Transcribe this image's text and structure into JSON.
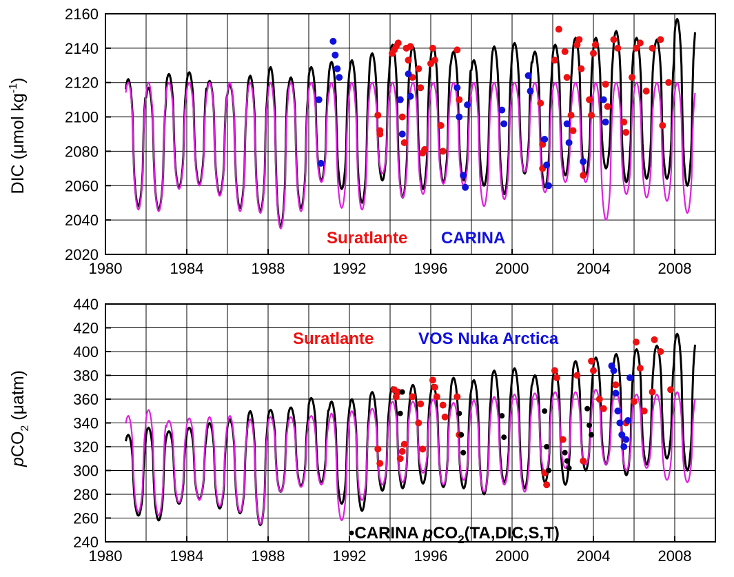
{
  "colors": {
    "model_black": "#000000",
    "model_magenta": "#dd22dd",
    "suratlante_red": "#ee1111",
    "carina_blue": "#1111dd",
    "carina_black_dots": "#000000"
  },
  "chart_data": [
    {
      "type": "line",
      "title": "",
      "ylabel_prefix": "DIC (",
      "ylabel_mu": "μ",
      "ylabel_mid": "mol kg",
      "ylabel_sup": "-1",
      "ylabel_suffix": ")",
      "xlabel": "",
      "xlim": [
        1980,
        2010
      ],
      "ylim": [
        2020,
        2160
      ],
      "x_ticks": [
        1980,
        1984,
        1988,
        1992,
        1996,
        2000,
        2004,
        2008
      ],
      "x_tick_labels": [
        "1980",
        "1984",
        "1988",
        "1992",
        "1996",
        "2000",
        "2004",
        "2008"
      ],
      "y_ticks": [
        2020,
        2040,
        2060,
        2080,
        2100,
        2120,
        2140,
        2160
      ],
      "y_tick_labels": [
        "2020",
        "2040",
        "2060",
        "2080",
        "2100",
        "2120",
        "2140",
        "2160"
      ],
      "grid": true,
      "legend": [
        {
          "label": "Suratlante",
          "color": "#ee1111"
        },
        {
          "label": "CARINA",
          "color": "#1111dd"
        }
      ],
      "series": [
        {
          "kind": "seasonal_line",
          "color": "#000000",
          "summer_min": [
            2048,
            2046,
            2059,
            2061,
            2055,
            2047,
            2045,
            2036,
            2047,
            2063,
            2058,
            2050,
            2063,
            2053,
            2058,
            2062,
            2063,
            2060,
            2055,
            2067,
            2059,
            2066,
            2066,
            2070,
            2062,
            2064,
            2064,
            2060
          ],
          "winter_max": [
            2122,
            2117,
            2125,
            2126,
            2121,
            2119,
            2124,
            2129,
            2123,
            2129,
            2132,
            2133,
            2137,
            2142,
            2141,
            2141,
            2138,
            2133,
            2141,
            2143,
            2138,
            2142,
            2146,
            2146,
            2150,
            2146,
            2145,
            2157
          ]
        },
        {
          "kind": "seasonal_line",
          "color": "#dd22dd",
          "summer_min": [
            2046,
            2045,
            2058,
            2060,
            2054,
            2045,
            2044,
            2035,
            2045,
            2062,
            2047,
            2046,
            2067,
            2053,
            2055,
            2061,
            2060,
            2048,
            2052,
            2068,
            2056,
            2062,
            2062,
            2040,
            2055,
            2053,
            2051,
            2044
          ],
          "winter_max": [
            2120,
            2120,
            2120,
            2120,
            2120,
            2120,
            2120,
            2120,
            2120,
            2120,
            2120,
            2120,
            2120,
            2120,
            2120,
            2120,
            2120,
            2120,
            2120,
            2120,
            2120,
            2120,
            2120,
            2120,
            2120,
            2120,
            2120,
            2120
          ]
        }
      ],
      "points": [
        {
          "name": "Suratlante",
          "color": "#ee1111",
          "x": [
            1993.4,
            1993.5,
            1993.5,
            1994.1,
            1994.2,
            1994.3,
            1994.4,
            1994.5,
            1994.6,
            1994.6,
            1994.7,
            1994.8,
            1994.9,
            1995.0,
            1995.1,
            1995.4,
            1995.5,
            1995.6,
            1995.7,
            1996.0,
            1996.1,
            1996.2,
            1996.5,
            1996.6,
            1997.3,
            1997.4,
            2001.4,
            2001.5,
            2001.5,
            2002.1,
            2002.3,
            2002.6,
            2002.7,
            2002.9,
            2003.0,
            2003.2,
            2003.3,
            2003.4,
            2003.5,
            2003.8,
            2003.9,
            2004.0,
            2004.1,
            2004.6,
            2004.7,
            2005.0,
            2005.2,
            2005.5,
            2005.6,
            2005.9,
            2006.1,
            2006.3,
            2006.6,
            2006.9,
            2007.3,
            2007.4,
            2007.7
          ],
          "y": [
            2101,
            2092,
            2090,
            2137,
            2139,
            2141,
            2143,
            2110,
            2100,
            2090,
            2085,
            2140,
            2133,
            2141,
            2123,
            2128,
            2117,
            2079,
            2081,
            2131,
            2140,
            2133,
            2095,
            2080,
            2139,
            2110,
            2108,
            2084,
            2070,
            2133,
            2151,
            2138,
            2123,
            2101,
            2092,
            2142,
            2145,
            2128,
            2066,
            2110,
            2101,
            2137,
            2142,
            2119,
            2106,
            2145,
            2140,
            2097,
            2091,
            2123,
            2140,
            2143,
            2115,
            2140,
            2145,
            2095,
            2120
          ]
        },
        {
          "name": "CARINA",
          "color": "#1111dd",
          "x": [
            1990.5,
            1990.6,
            1991.2,
            1991.3,
            1991.4,
            1991.5,
            1994.5,
            1994.6,
            1994.9,
            1995.0,
            1997.3,
            1997.4,
            1997.6,
            1997.7,
            1997.8,
            1999.5,
            1999.6,
            2000.8,
            2000.9,
            2001.6,
            2001.7,
            2001.8,
            2002.7,
            2002.8,
            2003.5,
            2004.5,
            2004.6
          ],
          "y": [
            2110,
            2073,
            2144,
            2136,
            2128,
            2123,
            2110,
            2090,
            2125,
            2112,
            2117,
            2100,
            2066,
            2059,
            2107,
            2104,
            2096,
            2124,
            2115,
            2087,
            2072,
            2060,
            2096,
            2085,
            2074,
            2110,
            2097
          ]
        }
      ]
    },
    {
      "type": "line",
      "title": "",
      "ylabel_italic": "p",
      "ylabel_mid": "CO",
      "ylabel_sub": "2",
      "ylabel_suffix": " (μatm)",
      "xlabel": "",
      "xlim": [
        1980,
        2010
      ],
      "ylim": [
        240,
        440
      ],
      "x_ticks": [
        1980,
        1984,
        1988,
        1992,
        1996,
        2000,
        2004,
        2008
      ],
      "x_tick_labels": [
        "1980",
        "1984",
        "1988",
        "1992",
        "1996",
        "2000",
        "2004",
        "2008"
      ],
      "y_ticks": [
        240,
        260,
        280,
        300,
        320,
        340,
        360,
        380,
        400,
        420,
        440
      ],
      "y_tick_labels": [
        "240",
        "260",
        "280",
        "300",
        "320",
        "340",
        "360",
        "380",
        "400",
        "420",
        "440"
      ],
      "grid": true,
      "legend": [
        {
          "label": "Suratlante",
          "color": "#ee1111"
        },
        {
          "label": "VOS Nuka Arctica",
          "color": "#1111dd"
        }
      ],
      "legend2": {
        "bullet": "•",
        "before": "CARINA ",
        "italic": "p",
        "mid": "CO",
        "sub": "2",
        "after": "(TA,DIC,S,T)"
      },
      "series": [
        {
          "kind": "seasonal_line",
          "color": "#000000",
          "summer_min": [
            262,
            258,
            272,
            276,
            268,
            264,
            254,
            282,
            287,
            290,
            272,
            266,
            283,
            285,
            289,
            286,
            285,
            280,
            290,
            285,
            290,
            288,
            300,
            305,
            296,
            305,
            310,
            300
          ],
          "winter_max": [
            330,
            336,
            333,
            336,
            340,
            343,
            350,
            351,
            353,
            361,
            358,
            360,
            366,
            370,
            372,
            372,
            378,
            376,
            384,
            386,
            380,
            385,
            392,
            395,
            398,
            402,
            405,
            415
          ]
        },
        {
          "kind": "seasonal_line",
          "color": "#dd22dd",
          "summer_min": [
            265,
            262,
            273,
            275,
            270,
            265,
            255,
            282,
            286,
            288,
            258,
            275,
            288,
            290,
            298,
            288,
            292,
            282,
            288,
            282,
            298,
            302,
            305,
            305,
            300,
            302,
            292,
            290
          ],
          "winter_max": [
            346,
            351,
            342,
            344,
            345,
            346,
            343,
            345,
            345,
            346,
            348,
            350,
            352,
            358,
            358,
            360,
            357,
            359,
            362,
            364,
            365,
            366,
            366,
            368,
            366,
            364,
            364,
            366
          ]
        }
      ],
      "points": [
        {
          "name": "Suratlante",
          "color": "#ee1111",
          "x": [
            1993.4,
            1993.5,
            1994.2,
            1994.3,
            1994.4,
            1994.5,
            1994.6,
            1994.7,
            1995.1,
            1995.4,
            1995.5,
            1995.6,
            1996.1,
            1996.2,
            1996.3,
            1996.6,
            1996.7,
            1997.3,
            1997.4,
            2001.6,
            2001.7,
            2002.1,
            2002.2,
            2002.5,
            2003.2,
            2003.5,
            2003.9,
            2004.0,
            2004.3,
            2004.5,
            2004.9,
            2005.1,
            2005.6,
            2006.0,
            2006.1,
            2006.3,
            2006.5,
            2006.9,
            2007.0,
            2007.3,
            2007.8
          ],
          "y": [
            318,
            306,
            368,
            362,
            366,
            310,
            316,
            322,
            362,
            340,
            356,
            318,
            376,
            370,
            362,
            355,
            345,
            362,
            330,
            298,
            288,
            384,
            378,
            326,
            380,
            308,
            392,
            384,
            360,
            352,
            388,
            372,
            340,
            358,
            408,
            386,
            350,
            366,
            410,
            400,
            368
          ]
        },
        {
          "name": "VOS Nuka Arctica",
          "color": "#1111dd",
          "x": [
            2004.9,
            2005.0,
            2005.1,
            2005.2,
            2005.3,
            2005.4,
            2005.5,
            2005.6,
            2005.7,
            2005.8
          ],
          "y": [
            388,
            384,
            365,
            350,
            340,
            330,
            320,
            326,
            342,
            378
          ]
        },
        {
          "name": "CARINA",
          "color": "#000000",
          "x": [
            1994.5,
            1994.6,
            1997.4,
            1997.5,
            1997.6,
            1999.5,
            1999.6,
            2001.6,
            2001.7,
            2001.8,
            2002.6,
            2002.7,
            2002.8,
            2003.7,
            2003.8,
            2003.9
          ],
          "y": [
            348,
            366,
            348,
            330,
            315,
            346,
            328,
            350,
            320,
            300,
            315,
            308,
            302,
            352,
            338,
            330
          ]
        }
      ]
    }
  ]
}
